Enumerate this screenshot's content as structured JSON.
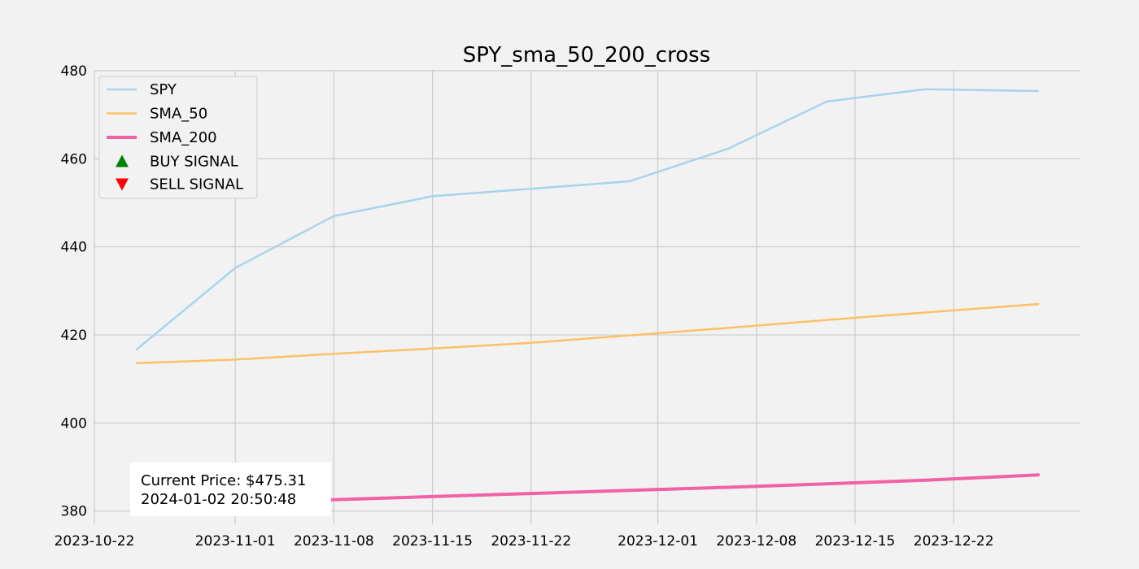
{
  "chart_data": {
    "type": "line",
    "title": "SPY_sma_50_200_cross",
    "xlabel": "",
    "ylabel": "",
    "x_axis_type": "date",
    "xlim": [
      "2023-10-22",
      "2023-12-31"
    ],
    "ylim": [
      377,
      480
    ],
    "x_ticks": [
      "2023-10-22",
      "2023-11-01",
      "2023-11-08",
      "2023-11-15",
      "2023-11-22",
      "2023-12-01",
      "2023-12-08",
      "2023-12-15",
      "2023-12-22"
    ],
    "y_ticks": [
      380,
      400,
      420,
      440,
      460,
      480
    ],
    "grid": true,
    "legend_position": "top-left",
    "x": [
      "2023-10-25",
      "2023-11-01",
      "2023-11-08",
      "2023-11-15",
      "2023-11-22",
      "2023-11-29",
      "2023-12-06",
      "2023-12-13",
      "2023-12-20",
      "2023-12-28"
    ],
    "series": [
      {
        "name": "SPY",
        "color": "#a6d5ec",
        "width": 2.5,
        "values": [
          416.7,
          435.2,
          447.0,
          451.5,
          453.2,
          454.9,
          462.3,
          473.0,
          475.8,
          475.4
        ]
      },
      {
        "name": "SMA_50",
        "color": "#fcc167",
        "width": 2.5,
        "values": [
          413.6,
          414.4,
          415.7,
          416.9,
          418.2,
          419.9,
          421.6,
          423.4,
          425.1,
          427.0
        ]
      },
      {
        "name": "SMA_200",
        "color": "#f062a5",
        "width": 4,
        "values": [
          381.2,
          382.0,
          382.6,
          383.3,
          384.0,
          384.7,
          385.4,
          386.2,
          387.0,
          388.2
        ]
      }
    ],
    "markers": [
      {
        "name": "BUY SIGNAL",
        "color": "#008000",
        "shape": "triangle-up"
      },
      {
        "name": "SELL SIGNAL",
        "color": "#ff0000",
        "shape": "triangle-down"
      }
    ],
    "annotation": {
      "line1": "Current Price: $475.31",
      "line2": "2024-01-02 20:50:48"
    }
  }
}
